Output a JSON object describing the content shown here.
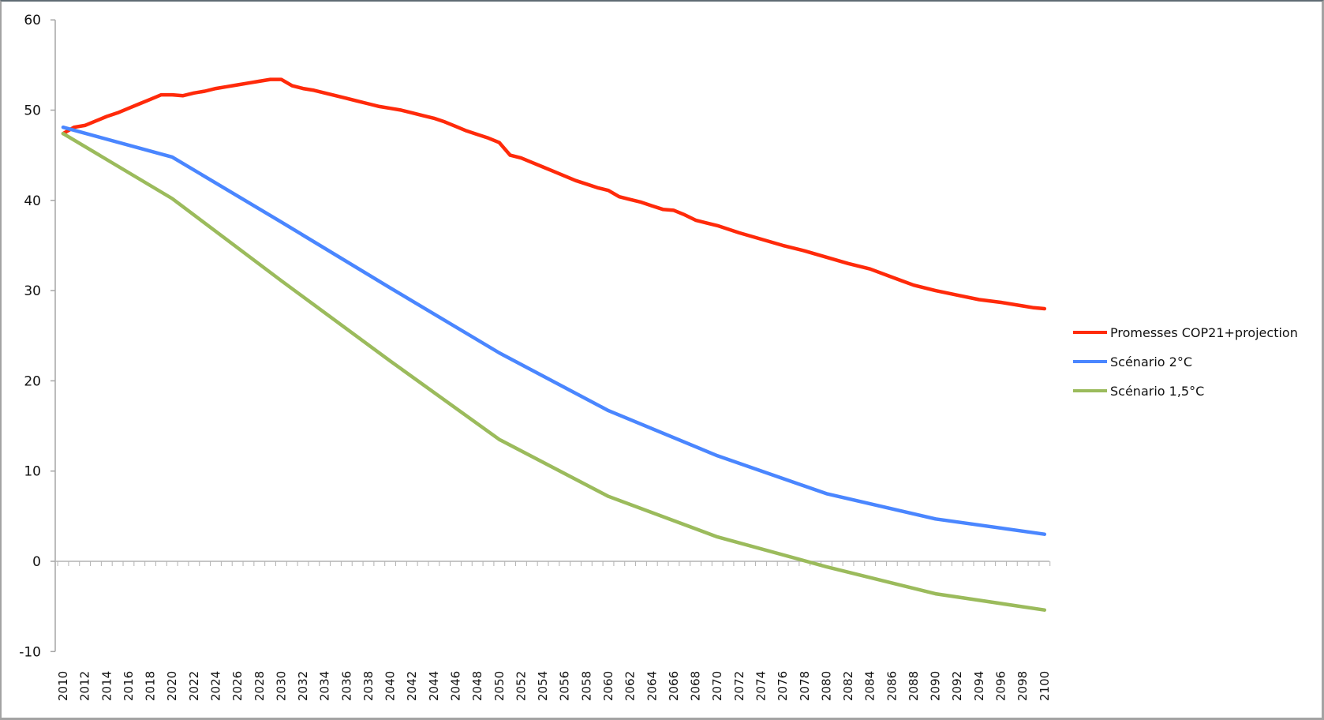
{
  "chart_data": {
    "type": "line",
    "title": "",
    "xlabel": "",
    "ylabel": "",
    "ylim": [
      -10,
      60
    ],
    "xlim": [
      2010,
      2100
    ],
    "grid": false,
    "legend_position": "right",
    "yticks": [
      60,
      50,
      40,
      30,
      20,
      10,
      0,
      -10
    ],
    "xtick_labels": [
      "2010",
      "2012",
      "2014",
      "2016",
      "2018",
      "2020",
      "2022",
      "2024",
      "2026",
      "2028",
      "2030",
      "2032",
      "2034",
      "2036",
      "2038",
      "2040",
      "2042",
      "2044",
      "2046",
      "2048",
      "2050",
      "2052",
      "2054",
      "2056",
      "2058",
      "2060",
      "2062",
      "2064",
      "2066",
      "2068",
      "2070",
      "2072",
      "2074",
      "2076",
      "2078",
      "2080",
      "2082",
      "2084",
      "2086",
      "2088",
      "2090",
      "2092",
      "2094",
      "2096",
      "2098",
      "2100"
    ],
    "series": [
      {
        "name": "Promesses COP21+projection",
        "color": "#ff2a0a",
        "x": [
          2010,
          2011,
          2012,
          2013,
          2014,
          2015,
          2016,
          2017,
          2018,
          2019,
          2020,
          2021,
          2022,
          2023,
          2024,
          2025,
          2026,
          2027,
          2028,
          2029,
          2030,
          2031,
          2032,
          2033,
          2034,
          2035,
          2036,
          2037,
          2038,
          2039,
          2040,
          2041,
          2042,
          2043,
          2044,
          2045,
          2046,
          2047,
          2048,
          2049,
          2050,
          2051,
          2052,
          2053,
          2054,
          2055,
          2056,
          2057,
          2058,
          2059,
          2060,
          2061,
          2062,
          2063,
          2064,
          2065,
          2066,
          2067,
          2068,
          2069,
          2070,
          2072,
          2074,
          2076,
          2078,
          2080,
          2082,
          2084,
          2086,
          2088,
          2090,
          2092,
          2094,
          2096,
          2098,
          2099,
          2100
        ],
        "values": [
          47.4,
          48.1,
          48.3,
          48.8,
          49.3,
          49.7,
          50.2,
          50.7,
          51.2,
          51.7,
          51.7,
          51.6,
          51.9,
          52.1,
          52.4,
          52.6,
          52.8,
          53.0,
          53.2,
          53.4,
          53.4,
          52.7,
          52.4,
          52.2,
          51.9,
          51.6,
          51.3,
          51.0,
          50.7,
          50.4,
          50.2,
          50.0,
          49.7,
          49.4,
          49.1,
          48.7,
          48.2,
          47.7,
          47.3,
          46.9,
          46.4,
          45.0,
          44.7,
          44.2,
          43.7,
          43.2,
          42.7,
          42.2,
          41.8,
          41.4,
          41.1,
          40.4,
          40.1,
          39.8,
          39.4,
          39.0,
          38.9,
          38.4,
          37.8,
          37.5,
          37.2,
          36.4,
          35.7,
          35.0,
          34.4,
          33.7,
          33.0,
          32.4,
          31.5,
          30.6,
          30.0,
          29.5,
          29.0,
          28.7,
          28.3,
          28.1,
          28.0
        ]
      },
      {
        "name": "Scénario 2°C",
        "color": "#4a86ff",
        "x": [
          2010,
          2020,
          2030,
          2040,
          2050,
          2060,
          2070,
          2080,
          2090,
          2100
        ],
        "values": [
          48.1,
          44.8,
          37.6,
          30.3,
          23.1,
          16.7,
          11.7,
          7.5,
          4.7,
          3.0
        ]
      },
      {
        "name": "Scénario 1,5°C",
        "color": "#9bbb5c",
        "x": [
          2010,
          2020,
          2030,
          2040,
          2050,
          2060,
          2070,
          2080,
          2090,
          2100
        ],
        "values": [
          47.4,
          40.2,
          31.1,
          22.2,
          13.5,
          7.2,
          2.7,
          -0.6,
          -3.6,
          -5.4
        ]
      }
    ]
  },
  "legend": {
    "items": [
      {
        "label": "Promesses COP21+projection",
        "color": "#ff2a0a"
      },
      {
        "label": "Scénario 2°C",
        "color": "#4a86ff"
      },
      {
        "label": "Scénario 1,5°C",
        "color": "#9bbb5c"
      }
    ]
  },
  "axes": {
    "y_labels": [
      "60",
      "50",
      "40",
      "30",
      "20",
      "10",
      "0",
      "-10"
    ]
  }
}
